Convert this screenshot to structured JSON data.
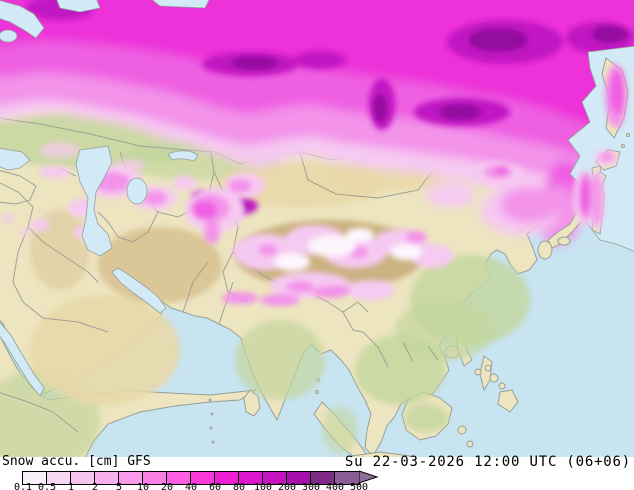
{
  "legend": {
    "title": "Snow accu. [cm] GFS",
    "timestamp": "Su 22-03-2026 12:00 UTC (06+06)",
    "levels": [
      "0.1",
      "0.5",
      "1",
      "2",
      "5",
      "10",
      "20",
      "40",
      "60",
      "80",
      "100",
      "200",
      "300",
      "400",
      "500"
    ],
    "colors": [
      "#f8f0f8",
      "#f8d7f4",
      "#f9c3f0",
      "#f9aeee",
      "#fa9aea",
      "#fb80e6",
      "#fc5fe1",
      "#fd38da",
      "#ef1fd4",
      "#dd16cd",
      "#c413c0",
      "#a611ac",
      "#7e2b88",
      "#8a5d95"
    ],
    "arrow_color": "#8e6d9d"
  },
  "map_colors": {
    "ocean": "#c8e4f1",
    "lake": "#d2eaf6",
    "land": "#ede5c0",
    "green": "#c3d69e",
    "desert": "#e8d8a8",
    "highland": "#d8c292",
    "plateau": "#c9af7d",
    "border": "#9a9a94",
    "coast": "#95a098",
    "snow_light": "#f6c9f2",
    "snow_mid": "#f393ea",
    "snow_bright": "#ef5fe2",
    "snow_deep": "#ec31d8",
    "snow_dark": "#c114c3",
    "snow_darker": "#93119f",
    "snow_white": "#fdf6fd"
  }
}
